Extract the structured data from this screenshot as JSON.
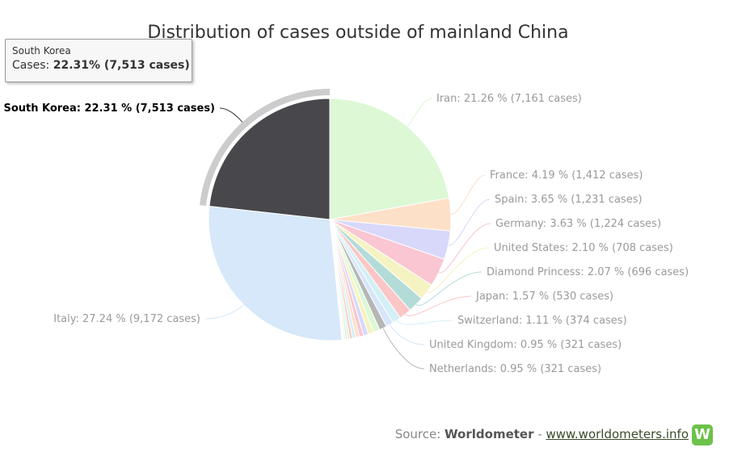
{
  "chart_data": {
    "type": "pie",
    "title": "Distribution of cases outside of mainland China",
    "slices": [
      {
        "label": "Iran",
        "pct_text": "21.26 %",
        "cases_text": "7,161 cases",
        "value": 7161,
        "color": "#dcf8d4",
        "labeled": true
      },
      {
        "label": "France",
        "pct_text": "4.19 %",
        "cases_text": "1,412 cases",
        "value": 1412,
        "color": "#fde0c8",
        "labeled": true
      },
      {
        "label": "Spain",
        "pct_text": "3.65 %",
        "cases_text": "1,231 cases",
        "value": 1231,
        "color": "#d8d8fa",
        "labeled": true
      },
      {
        "label": "Germany",
        "pct_text": "3.63 %",
        "cases_text": "1,224 cases",
        "value": 1224,
        "color": "#f9c6d2",
        "labeled": true
      },
      {
        "label": "United States",
        "pct_text": "2.10 %",
        "cases_text": "708 cases",
        "value": 708,
        "color": "#f6f3c2",
        "labeled": true
      },
      {
        "label": "Diamond Princess",
        "pct_text": "2.07 %",
        "cases_text": "696 cases",
        "value": 696,
        "color": "#b3dcd8",
        "labeled": true
      },
      {
        "label": "Japan",
        "pct_text": "1.57 %",
        "cases_text": "530 cases",
        "value": 530,
        "color": "#fcc6c6",
        "labeled": true
      },
      {
        "label": "Switzerland",
        "pct_text": "1.11 %",
        "cases_text": "374 cases",
        "value": 374,
        "color": "#d2f0f6",
        "labeled": true
      },
      {
        "label": "United Kingdom",
        "pct_text": "0.95 %",
        "cases_text": "321 cases",
        "value": 321,
        "color": "#d6e6fa",
        "labeled": true
      },
      {
        "label": "Netherlands",
        "pct_text": "0.95 %",
        "cases_text": "321 cases",
        "value": 321,
        "color": "#b6b6b6",
        "labeled": true
      },
      {
        "label": "",
        "value": 275,
        "color": "#dcf8d4",
        "labeled": false
      },
      {
        "label": "",
        "value": 240,
        "color": "#f6f3c2",
        "labeled": false
      },
      {
        "label": "",
        "value": 210,
        "color": "#d8d8fa",
        "labeled": false
      },
      {
        "label": "",
        "value": 185,
        "color": "#f9c6d2",
        "labeled": false
      },
      {
        "label": "",
        "value": 160,
        "color": "#fde0c8",
        "labeled": false
      },
      {
        "label": "",
        "value": 140,
        "color": "#d2f0f6",
        "labeled": false
      },
      {
        "label": "",
        "value": 120,
        "color": "#fcc6c6",
        "labeled": false
      },
      {
        "label": "",
        "value": 100,
        "color": "#dcf8d4",
        "labeled": false
      },
      {
        "label": "",
        "value": 80,
        "color": "#d6e6fa",
        "labeled": false
      },
      {
        "label": "",
        "value": 60,
        "color": "#f6f3c2",
        "labeled": false
      },
      {
        "label": "",
        "value": 45,
        "color": "#f9c6d2",
        "labeled": false
      },
      {
        "label": "",
        "value": 30,
        "color": "#d8d8fa",
        "labeled": false
      },
      {
        "label": "",
        "value": 20,
        "color": "#fde0c8",
        "labeled": false
      },
      {
        "label": "Italy",
        "pct_text": "27.24 %",
        "cases_text": "9,172 cases",
        "value": 9172,
        "color": "#d6e8fa",
        "labeled": true
      },
      {
        "label": "South Korea",
        "pct_text": "22.31 %",
        "cases_text": "7,513 cases",
        "value": 7513,
        "color": "#48474b",
        "labeled": true,
        "highlighted": true
      }
    ]
  },
  "tooltip": {
    "country": "South Korea",
    "prefix": "Cases:",
    "value_text": "22.31% (7,513 cases)"
  },
  "source": {
    "prefix": "Source:",
    "name": "Worldometer",
    "separator": "-",
    "link_text": "www.worldometers.info",
    "logo_letter": "W",
    "logo_color": "#6cc24a"
  }
}
